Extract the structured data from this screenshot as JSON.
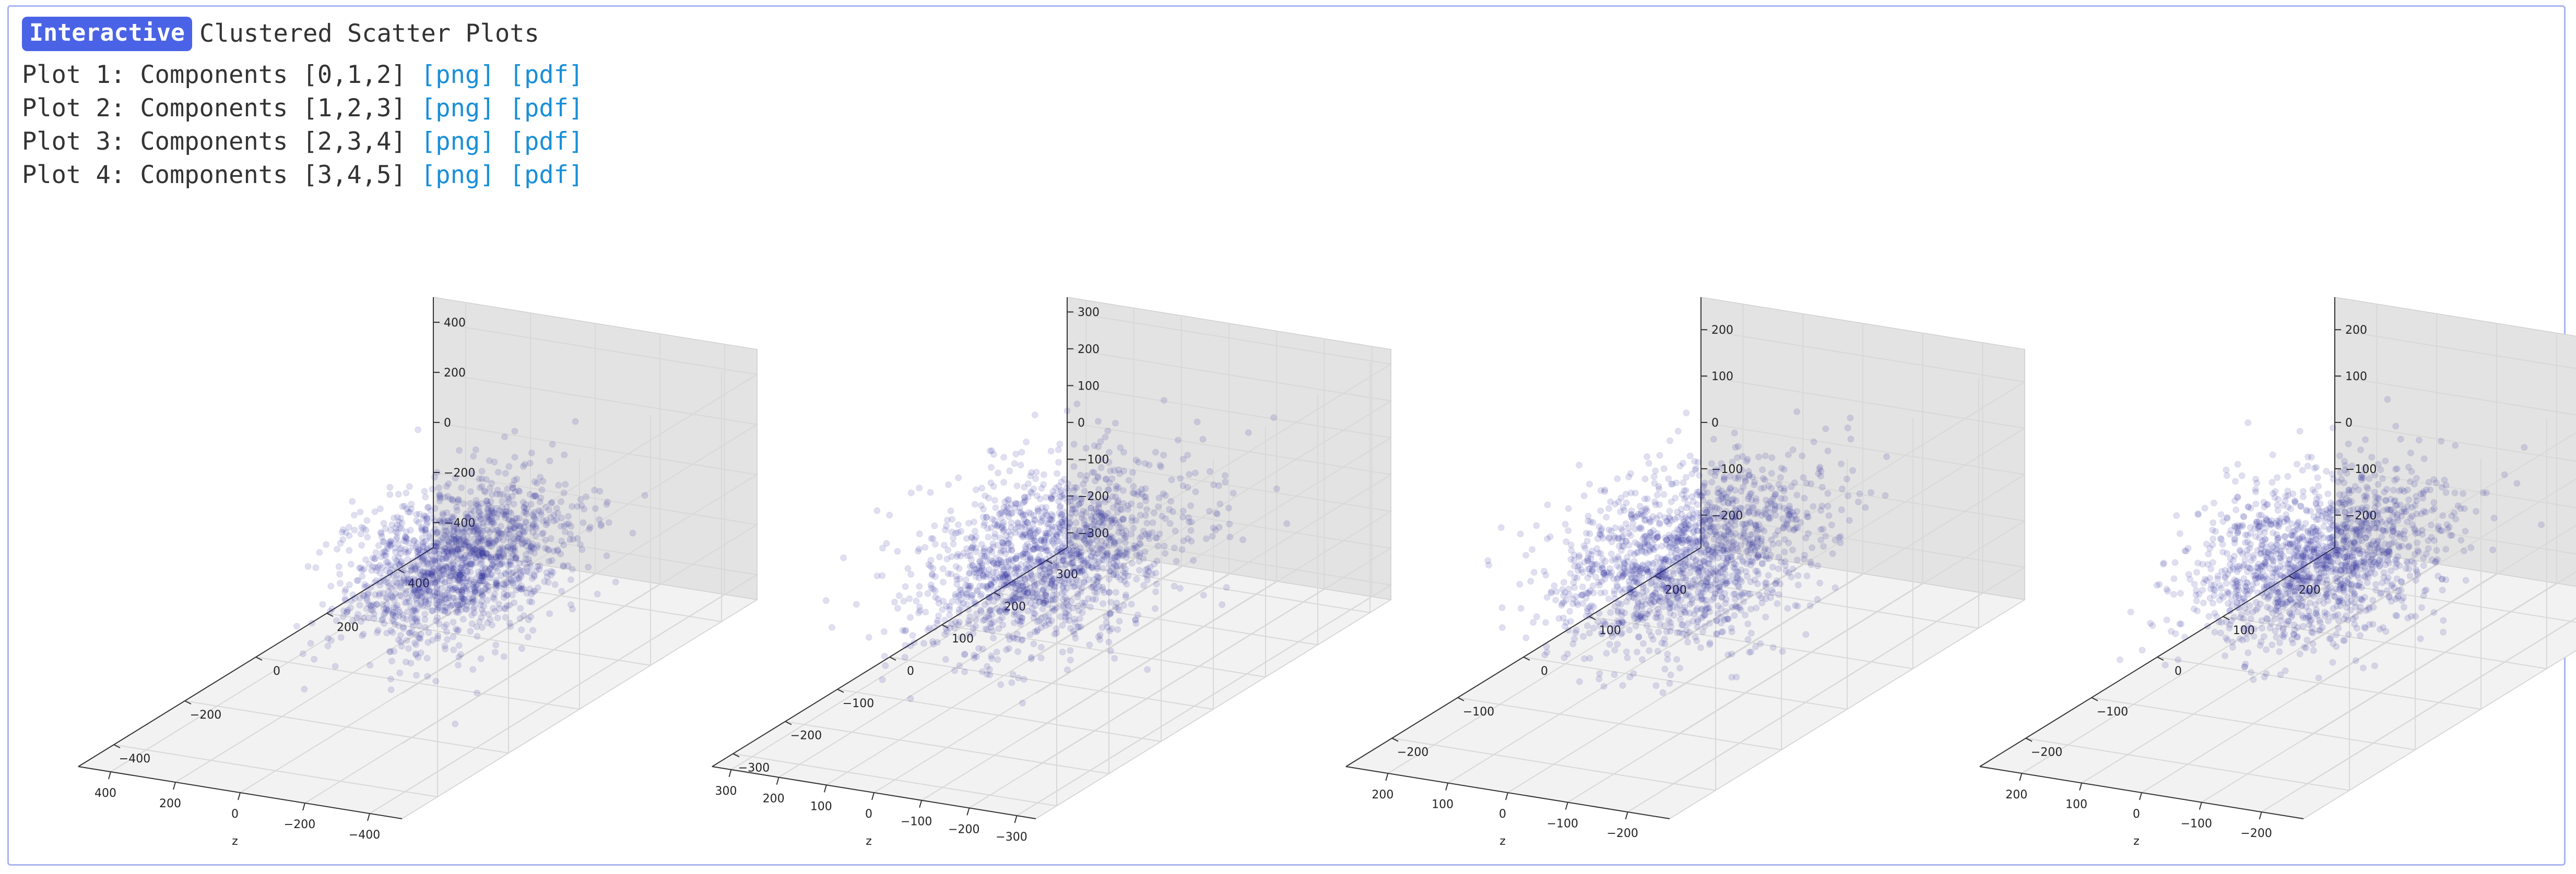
{
  "header": {
    "badge": "Interactive",
    "title": "Clustered Scatter Plots"
  },
  "plot_list": [
    {
      "label": "Plot 1: Components [0,1,2]",
      "png": "[png]",
      "pdf": "[pdf]"
    },
    {
      "label": "Plot 2: Components [1,2,3]",
      "png": "[png]",
      "pdf": "[pdf]"
    },
    {
      "label": "Plot 3: Components [2,3,4]",
      "png": "[png]",
      "pdf": "[pdf]"
    },
    {
      "label": "Plot 4: Components [3,4,5]",
      "png": "[png]",
      "pdf": "[pdf]"
    }
  ],
  "colors": {
    "badge_bg": "#4a63e6",
    "link": "#1a8fd8",
    "frame_border": "#a8b4f0",
    "point": "#2b2b9a",
    "pane_left": "#ebebeb",
    "pane_right": "#e3e3e3",
    "pane_floor": "#f2f2f2"
  },
  "chart_data": [
    {
      "type": "scatter",
      "subtype": "3d",
      "xlabel": "z",
      "x_ticks": [
        -400,
        -200,
        0,
        200,
        400
      ],
      "y_ticks": [
        -400,
        -200,
        0,
        200,
        400
      ],
      "z_ticks": [
        -400,
        -200,
        0,
        200,
        400
      ],
      "xlim": [
        -500,
        500
      ],
      "ylim": [
        -500,
        500
      ],
      "zlim": [
        -500,
        500
      ],
      "point_count": 1500,
      "std": [
        120,
        120,
        120
      ],
      "center": [
        -60,
        60,
        -50
      ],
      "alpha": 0.15,
      "grid": true
    },
    {
      "type": "scatter",
      "subtype": "3d",
      "xlabel": "z",
      "x_ticks": [
        -300,
        -200,
        -100,
        0,
        100,
        200,
        300
      ],
      "y_ticks": [
        -300,
        -200,
        -100,
        0,
        100,
        200,
        300
      ],
      "z_ticks": [
        -300,
        -200,
        -100,
        0,
        100,
        200,
        300
      ],
      "xlim": [
        -340,
        340
      ],
      "ylim": [
        -340,
        340
      ],
      "zlim": [
        -340,
        340
      ],
      "point_count": 1500,
      "std": [
        95,
        95,
        95
      ],
      "center": [
        0,
        0,
        0
      ],
      "alpha": 0.15,
      "grid": true
    },
    {
      "type": "scatter",
      "subtype": "3d",
      "xlabel": "z",
      "x_ticks": [
        -200,
        -100,
        0,
        100,
        200
      ],
      "y_ticks": [
        -200,
        -100,
        0,
        100,
        200
      ],
      "z_ticks": [
        -200,
        -100,
        0,
        100,
        200
      ],
      "xlim": [
        -270,
        270
      ],
      "ylim": [
        -270,
        270
      ],
      "zlim": [
        -270,
        270
      ],
      "point_count": 1500,
      "std": [
        75,
        75,
        75
      ],
      "center": [
        0,
        0,
        0
      ],
      "alpha": 0.15,
      "grid": true
    },
    {
      "type": "scatter",
      "subtype": "3d",
      "xlabel": "z",
      "x_ticks": [
        -200,
        -100,
        0,
        100,
        200
      ],
      "y_ticks": [
        -200,
        -100,
        0,
        100,
        200
      ],
      "z_ticks": [
        -200,
        -100,
        0,
        100,
        200
      ],
      "xlim": [
        -270,
        270
      ],
      "ylim": [
        -270,
        270
      ],
      "zlim": [
        -270,
        270
      ],
      "point_count": 1500,
      "std": [
        72,
        72,
        72
      ],
      "center": [
        0,
        0,
        0
      ],
      "alpha": 0.15,
      "grid": true
    }
  ]
}
